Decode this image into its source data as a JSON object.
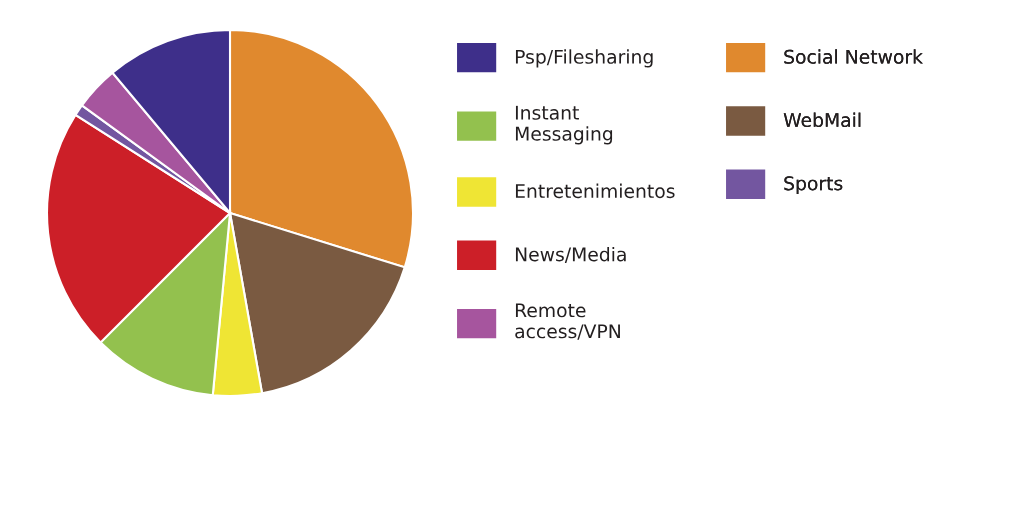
{
  "chart_data": {
    "type": "pie",
    "categories": [
      "Psp/Filesharing",
      "Instant\nMessaging",
      "Entretenimientos",
      "News/Media",
      "Remote\naccess/VPN",
      "Social Network",
      "WebMail",
      "Sports"
    ],
    "values": [
      11.1,
      11.0,
      4.3,
      21.5,
      3.9,
      29.8,
      17.4,
      1.0
    ],
    "colors": [
      "#3e2f8a",
      "#93c14e",
      "#efe534",
      "#cc1f28",
      "#a6559e",
      "#e0892e",
      "#7a5a41",
      "#7356a0"
    ],
    "legend": "right"
  }
}
